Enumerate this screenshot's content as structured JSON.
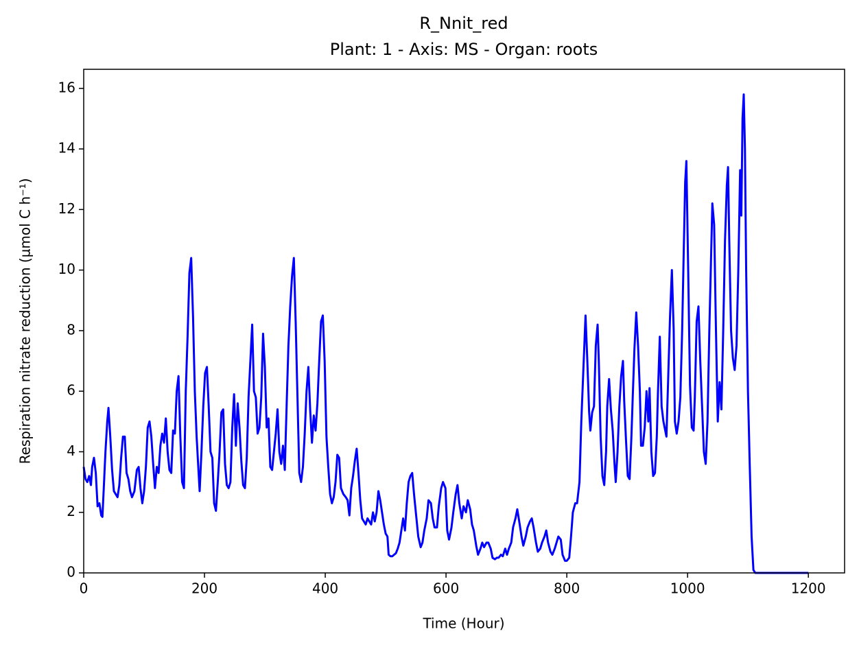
{
  "chart_data": {
    "type": "line",
    "title": "R_Nnit_red",
    "subtitle": "Plant: 1 - Axis: MS - Organ: roots",
    "x_label": "Time (Hour)",
    "y_label": "Respiration nitrate reduction (µmol C h⁻¹)",
    "color": "#0000ff",
    "xlim": [
      0,
      1260
    ],
    "xticks": [
      0,
      200,
      400,
      600,
      800,
      1000,
      1200
    ],
    "ylim": [
      0,
      16.63
    ],
    "yticks": [
      0,
      2,
      4,
      6,
      8,
      10,
      12,
      14,
      16
    ],
    "x": [
      0,
      3,
      6,
      9,
      12,
      14,
      17,
      20,
      23,
      26,
      29,
      31,
      33,
      36,
      39,
      41,
      44,
      47,
      50,
      53,
      56,
      59,
      62,
      65,
      68,
      71,
      74,
      77,
      80,
      84,
      88,
      91,
      94,
      97,
      100,
      103,
      106,
      109,
      112,
      115,
      118,
      121,
      124,
      127,
      130,
      133,
      136,
      139,
      142,
      145,
      148,
      151,
      154,
      157,
      160,
      163,
      166,
      169,
      172,
      175,
      178,
      181,
      184,
      187,
      190,
      192,
      195,
      198,
      201,
      204,
      207,
      210,
      213,
      216,
      219,
      222,
      225,
      228,
      231,
      234,
      237,
      240,
      243,
      246,
      249,
      252,
      255,
      258,
      261,
      264,
      267,
      270,
      273,
      276,
      279,
      282,
      285,
      288,
      291,
      294,
      297,
      300,
      303,
      306,
      309,
      312,
      315,
      318,
      321,
      324,
      327,
      330,
      333,
      336,
      339,
      342,
      345,
      348,
      351,
      354,
      357,
      360,
      363,
      366,
      369,
      372,
      375,
      378,
      381,
      384,
      387,
      390,
      393,
      396,
      399,
      402,
      405,
      408,
      411,
      414,
      417,
      420,
      423,
      426,
      430,
      434,
      437,
      440,
      443,
      446,
      449,
      452,
      455,
      458,
      461,
      464,
      467,
      470,
      473,
      476,
      479,
      482,
      485,
      488,
      491,
      494,
      497,
      500,
      503,
      505,
      508,
      511,
      514,
      517,
      520,
      523,
      526,
      529,
      532,
      535,
      538,
      541,
      544,
      547,
      551,
      554,
      558,
      561,
      564,
      568,
      571,
      575,
      578,
      581,
      585,
      588,
      592,
      595,
      599,
      602,
      605,
      609,
      612,
      616,
      619,
      622,
      626,
      629,
      633,
      636,
      640,
      643,
      646,
      650,
      653,
      657,
      660,
      663,
      667,
      670,
      674,
      677,
      681,
      684,
      687,
      691,
      694,
      698,
      701,
      704,
      708,
      711,
      715,
      718,
      722,
      725,
      728,
      732,
      735,
      739,
      742,
      745,
      749,
      752,
      756,
      759,
      763,
      766,
      769,
      773,
      776,
      780,
      783,
      786,
      790,
      793,
      797,
      800,
      804,
      807,
      810,
      814,
      817,
      821,
      824,
      828,
      831,
      834,
      837,
      839,
      842,
      845,
      848,
      851,
      853,
      856,
      859,
      862,
      865,
      867,
      870,
      873,
      876,
      879,
      881,
      884,
      887,
      890,
      893,
      895,
      898,
      901,
      904,
      907,
      909,
      912,
      915,
      918,
      921,
      923,
      926,
      929,
      932,
      935,
      937,
      940,
      943,
      946,
      949,
      951,
      954,
      957,
      960,
      963,
      965,
      968,
      971,
      974,
      977,
      979,
      982,
      985,
      988,
      991,
      993,
      996,
      998,
      1001,
      1004,
      1007,
      1010,
      1012,
      1015,
      1018,
      1021,
      1024,
      1027,
      1030,
      1033,
      1036,
      1039,
      1041,
      1044,
      1047,
      1050,
      1053,
      1056,
      1059,
      1062,
      1065,
      1067,
      1069,
      1072,
      1075,
      1078,
      1081,
      1084,
      1087,
      1089,
      1091,
      1093,
      1095,
      1097,
      1100,
      1103,
      1106,
      1109,
      1112,
      1119,
      1200
    ],
    "values": [
      3.5,
      3.1,
      3.0,
      3.2,
      2.9,
      3.5,
      3.8,
      3.3,
      2.2,
      2.3,
      1.9,
      1.85,
      2.7,
      4.0,
      5.0,
      5.45,
      4.5,
      3.4,
      2.7,
      2.6,
      2.5,
      2.9,
      3.8,
      4.5,
      4.5,
      3.3,
      3.1,
      2.7,
      2.5,
      2.7,
      3.4,
      3.5,
      2.8,
      2.3,
      2.7,
      3.5,
      4.8,
      5.0,
      4.5,
      3.6,
      2.8,
      3.5,
      3.3,
      4.2,
      4.6,
      4.3,
      5.1,
      4.0,
      3.4,
      3.3,
      4.7,
      4.6,
      6.0,
      6.5,
      4.5,
      3.0,
      2.8,
      6.0,
      7.8,
      9.9,
      10.4,
      8.5,
      6.0,
      4.5,
      3.4,
      2.7,
      4.0,
      5.5,
      6.6,
      6.8,
      5.5,
      4.0,
      3.8,
      2.3,
      2.05,
      3.0,
      4.0,
      5.3,
      5.4,
      3.6,
      2.9,
      2.8,
      3.0,
      4.8,
      5.9,
      4.2,
      5.6,
      4.8,
      3.7,
      2.9,
      2.8,
      3.8,
      5.8,
      7.0,
      8.2,
      6.0,
      5.8,
      4.6,
      4.8,
      5.8,
      7.9,
      6.8,
      4.8,
      5.1,
      3.5,
      3.4,
      4.0,
      4.6,
      5.4,
      4.0,
      3.6,
      4.2,
      3.4,
      5.5,
      7.5,
      8.8,
      9.8,
      10.4,
      8.3,
      5.8,
      3.3,
      3.0,
      3.5,
      4.6,
      6.0,
      6.8,
      5.4,
      4.3,
      5.2,
      4.7,
      5.6,
      7.0,
      8.3,
      8.5,
      7.0,
      4.5,
      3.5,
      2.6,
      2.3,
      2.5,
      3.0,
      3.9,
      3.8,
      2.8,
      2.6,
      2.5,
      2.4,
      1.9,
      2.8,
      3.2,
      3.7,
      4.1,
      3.3,
      2.4,
      1.8,
      1.7,
      1.6,
      1.8,
      1.7,
      1.6,
      2.0,
      1.7,
      2.0,
      2.7,
      2.4,
      2.0,
      1.6,
      1.3,
      1.2,
      0.6,
      0.55,
      0.55,
      0.6,
      0.65,
      0.8,
      1.0,
      1.4,
      1.8,
      1.4,
      2.3,
      3.0,
      3.2,
      3.3,
      2.6,
      1.8,
      1.2,
      0.85,
      1.0,
      1.4,
      1.8,
      2.4,
      2.3,
      1.8,
      1.5,
      1.5,
      2.2,
      2.8,
      3.0,
      2.8,
      1.4,
      1.1,
      1.5,
      2.0,
      2.6,
      2.9,
      2.3,
      1.8,
      2.2,
      2.0,
      2.4,
      2.1,
      1.6,
      1.4,
      0.9,
      0.6,
      0.8,
      1.0,
      0.85,
      1.0,
      1.0,
      0.8,
      0.5,
      0.45,
      0.5,
      0.5,
      0.6,
      0.55,
      0.8,
      0.6,
      0.8,
      1.0,
      1.5,
      1.8,
      2.1,
      1.6,
      1.2,
      0.9,
      1.2,
      1.5,
      1.7,
      1.8,
      1.5,
      1.0,
      0.7,
      0.8,
      1.0,
      1.2,
      1.4,
      1.0,
      0.7,
      0.6,
      0.8,
      1.0,
      1.2,
      1.1,
      0.6,
      0.4,
      0.4,
      0.5,
      1.2,
      2.0,
      2.3,
      2.3,
      3.0,
      5.0,
      7.0,
      8.5,
      7.0,
      5.3,
      4.7,
      5.3,
      5.5,
      7.5,
      8.2,
      7.0,
      4.5,
      3.2,
      2.9,
      4.0,
      5.5,
      6.4,
      5.4,
      4.7,
      3.6,
      3.0,
      4.0,
      5.5,
      6.5,
      7.0,
      5.7,
      4.4,
      3.2,
      3.1,
      4.5,
      5.7,
      7.4,
      8.6,
      7.5,
      6.0,
      4.2,
      4.2,
      4.8,
      6.0,
      5.0,
      6.1,
      4.0,
      3.2,
      3.3,
      4.5,
      6.0,
      7.8,
      5.5,
      5.0,
      4.7,
      4.5,
      6.5,
      8.5,
      10.0,
      8.0,
      5.0,
      4.6,
      5.0,
      5.8,
      8.0,
      10.0,
      12.9,
      13.6,
      10.0,
      6.2,
      4.8,
      4.7,
      5.8,
      8.3,
      8.8,
      7.0,
      5.5,
      4.0,
      3.6,
      5.0,
      8.0,
      10.5,
      12.2,
      11.5,
      8.0,
      5.0,
      6.3,
      5.4,
      8.0,
      11.0,
      12.8,
      13.4,
      11.0,
      8.0,
      7.1,
      6.7,
      7.5,
      10.0,
      13.3,
      11.8,
      15.0,
      15.8,
      14.0,
      10.0,
      6.0,
      3.5,
      1.2,
      0.1,
      0,
      0,
      0
    ]
  }
}
